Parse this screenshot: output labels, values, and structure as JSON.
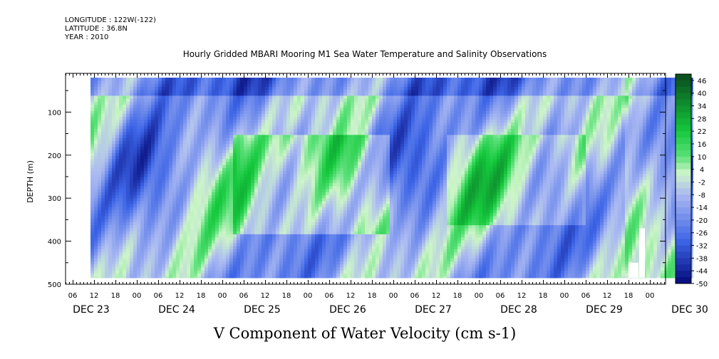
{
  "meta_lines": [
    "LONGITUDE : 122W(-122)",
    "LATITUDE : 36.8N",
    "YEAR : 2010"
  ],
  "chart_data": {
    "type": "heatmap",
    "title": "Hourly Gridded MBARI Mooring M1 Sea Water Temperature and Salinity Observations",
    "xlabel": "V Component of Water Velocity (cm s-1)",
    "ylabel": "DEPTH (m)",
    "ylim": [
      500,
      10
    ],
    "y_ticks": [
      100,
      200,
      300,
      400,
      500
    ],
    "x_hour_labels": [
      "06",
      "12",
      "18",
      "00",
      "06",
      "12",
      "18",
      "00",
      "06",
      "12",
      "18",
      "00",
      "06",
      "12",
      "18",
      "00",
      "06",
      "12",
      "18",
      "00",
      "06",
      "12",
      "18",
      "00",
      "06",
      "12",
      "18",
      "00",
      "06",
      "12",
      "18",
      "00"
    ],
    "x_day_labels": [
      "DEC 23",
      "DEC 24",
      "DEC 25",
      "DEC 26",
      "DEC 27",
      "DEC 28",
      "DEC 29",
      "DEC 30"
    ],
    "data_time_range": [
      "DEC 23 11:00",
      "DEC 30 12:00"
    ],
    "data_depth_range": [
      20,
      485
    ],
    "colorbar_labels": [
      "46",
      "40",
      "34",
      "28",
      "22",
      "16",
      "10",
      "4",
      "-2",
      "-8",
      "-14",
      "-20",
      "-26",
      "-32",
      "-38",
      "-44",
      "-50"
    ],
    "colorbar_range": [
      -50,
      49
    ],
    "colors": {
      "negative_strong": "#050a7a",
      "negative": "#3c64e6",
      "negative_weak": "#aab9f2",
      "near_zero": "#cdf5c8",
      "positive_weak": "#5ae078",
      "positive": "#14c83c",
      "positive_strong": "#0a4a1e"
    }
  }
}
